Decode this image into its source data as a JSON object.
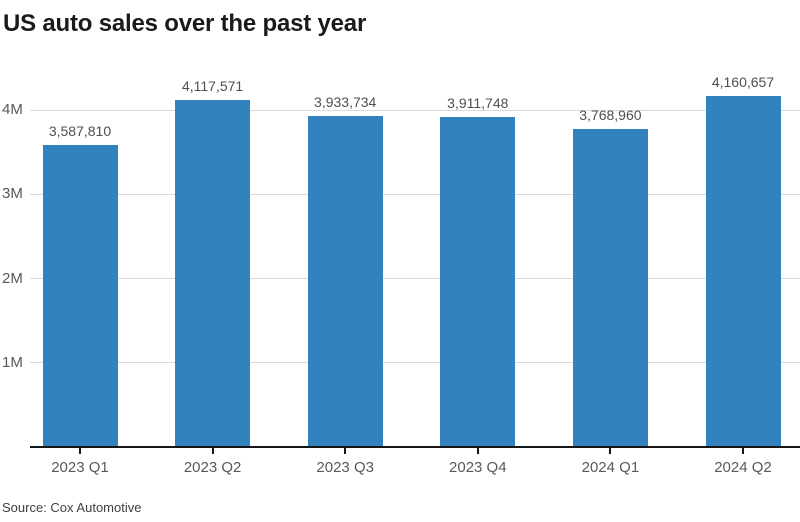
{
  "title": "US auto sales over the past year",
  "source": "Source: Cox Automotive",
  "colors": {
    "bar": "#3182bd",
    "grid": "#d9d9d9",
    "axis": "#161616",
    "tick_label": "#595959",
    "value_label": "#4f4f4f",
    "title": "#1a1a1a"
  },
  "chart_data": {
    "type": "bar",
    "title": "US auto sales over the past year",
    "categories": [
      "2023 Q1",
      "2023 Q2",
      "2023 Q3",
      "2023 Q4",
      "2024 Q1",
      "2024 Q2"
    ],
    "values": [
      3587810,
      4117571,
      3933734,
      3911748,
      3768960,
      4160657
    ],
    "value_labels": [
      "3,587,810",
      "4,117,571",
      "3,933,734",
      "3,911,748",
      "3,768,960",
      "4,160,657"
    ],
    "xlabel": "",
    "ylabel": "",
    "ylim": [
      0,
      4500000
    ],
    "yticks": [
      {
        "value": 1000000,
        "label": "1M"
      },
      {
        "value": 2000000,
        "label": "2M"
      },
      {
        "value": 3000000,
        "label": "3M"
      },
      {
        "value": 4000000,
        "label": "4M"
      }
    ],
    "grid": "horizontal",
    "legend": "none",
    "bar_color": "#3182bd",
    "source": "Source: Cox Automotive"
  }
}
